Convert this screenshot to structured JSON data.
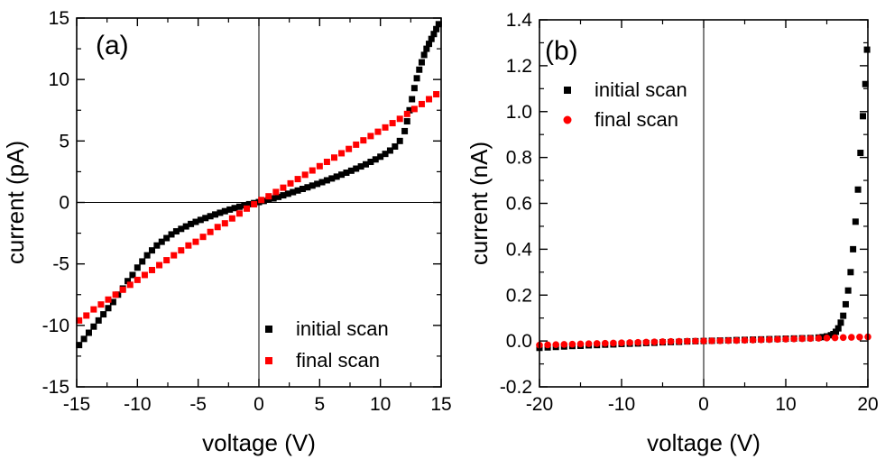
{
  "chart_data": [
    {
      "type": "scatter",
      "panel_label": "(a)",
      "xlabel": "voltage (V)",
      "ylabel": "current (pA)",
      "xlim": [
        -15,
        15
      ],
      "ylim": [
        -15,
        15
      ],
      "xticks": [
        -15,
        -10,
        -5,
        0,
        5,
        10,
        15
      ],
      "yticks": [
        -15,
        -10,
        -5,
        0,
        5,
        10,
        15
      ],
      "xtick_labels": [
        "-15",
        "-10",
        "-5",
        "0",
        "5",
        "10",
        "15"
      ],
      "ytick_labels": [
        "-15",
        "-10",
        "-5",
        "0",
        "5",
        "10",
        "15"
      ],
      "zero_lines": true,
      "grid": false,
      "legend_position": "bottom-right",
      "series": [
        {
          "name": "initial scan",
          "color": "#000000",
          "marker": "square",
          "x": [
            -14.8,
            -14.4,
            -14.0,
            -13.6,
            -13.2,
            -12.8,
            -12.4,
            -12.0,
            -11.6,
            -11.2,
            -10.8,
            -10.4,
            -10.0,
            -9.6,
            -9.2,
            -8.8,
            -8.4,
            -8.0,
            -7.6,
            -7.2,
            -6.8,
            -6.4,
            -6.0,
            -5.6,
            -5.2,
            -4.8,
            -4.4,
            -4.0,
            -3.6,
            -3.2,
            -2.8,
            -2.4,
            -2.0,
            -1.6,
            -1.2,
            -0.8,
            -0.4,
            0.0,
            0.4,
            0.8,
            1.2,
            1.6,
            2.0,
            2.4,
            2.8,
            3.2,
            3.6,
            4.0,
            4.4,
            4.8,
            5.2,
            5.6,
            6.0,
            6.4,
            6.8,
            7.2,
            7.6,
            8.0,
            8.4,
            8.8,
            9.2,
            9.6,
            10.0,
            10.4,
            10.8,
            11.2,
            11.6,
            12.0,
            12.2,
            12.4,
            12.6,
            12.8,
            13.0,
            13.2,
            13.4,
            13.6,
            13.8,
            14.0,
            14.2,
            14.4,
            14.6,
            14.8
          ],
          "y": [
            -11.6,
            -11.1,
            -10.6,
            -10.1,
            -9.6,
            -9.1,
            -8.6,
            -8.1,
            -7.5,
            -7.0,
            -6.4,
            -5.9,
            -5.3,
            -4.8,
            -4.3,
            -3.9,
            -3.5,
            -3.2,
            -2.9,
            -2.6,
            -2.35,
            -2.15,
            -1.95,
            -1.75,
            -1.58,
            -1.42,
            -1.27,
            -1.12,
            -0.98,
            -0.84,
            -0.71,
            -0.58,
            -0.46,
            -0.35,
            -0.24,
            -0.14,
            -0.05,
            0.03,
            0.12,
            0.22,
            0.33,
            0.45,
            0.58,
            0.71,
            0.84,
            0.97,
            1.1,
            1.23,
            1.37,
            1.51,
            1.65,
            1.8,
            1.95,
            2.1,
            2.26,
            2.42,
            2.58,
            2.75,
            2.93,
            3.1,
            3.3,
            3.5,
            3.72,
            3.95,
            4.22,
            4.55,
            5.0,
            5.8,
            6.6,
            7.5,
            8.4,
            9.3,
            10.1,
            10.8,
            11.4,
            12.0,
            12.5,
            12.9,
            13.3,
            13.7,
            14.1,
            14.5
          ]
        },
        {
          "name": "final scan",
          "color": "#ff0000",
          "marker": "square",
          "x": [
            -14.8,
            -14.2,
            -13.6,
            -13.0,
            -12.4,
            -11.8,
            -11.2,
            -10.6,
            -10.0,
            -9.4,
            -8.8,
            -8.2,
            -7.6,
            -7.0,
            -6.4,
            -5.8,
            -5.2,
            -4.6,
            -4.0,
            -3.4,
            -2.8,
            -2.2,
            -1.6,
            -1.0,
            -0.4,
            0.2,
            0.8,
            1.4,
            2.0,
            2.6,
            3.2,
            3.8,
            4.4,
            5.0,
            5.6,
            6.2,
            6.8,
            7.4,
            8.0,
            8.6,
            9.2,
            9.8,
            10.4,
            11.0,
            11.6,
            12.2,
            12.8,
            13.4,
            14.0,
            14.6
          ],
          "y": [
            -9.6,
            -9.2,
            -8.7,
            -8.3,
            -7.9,
            -7.5,
            -7.1,
            -6.7,
            -6.3,
            -5.9,
            -5.5,
            -5.1,
            -4.7,
            -4.3,
            -3.9,
            -3.5,
            -3.2,
            -2.8,
            -2.4,
            -2.0,
            -1.7,
            -1.3,
            -0.9,
            -0.5,
            -0.15,
            0.2,
            0.5,
            0.85,
            1.2,
            1.55,
            1.9,
            2.25,
            2.6,
            2.95,
            3.3,
            3.65,
            4.0,
            4.35,
            4.7,
            5.05,
            5.4,
            5.75,
            6.1,
            6.45,
            6.8,
            7.2,
            7.6,
            8.0,
            8.4,
            8.8
          ]
        }
      ]
    },
    {
      "type": "scatter",
      "panel_label": "(b)",
      "xlabel": "voltage (V)",
      "ylabel": "current (nA)",
      "xlim": [
        -20,
        20
      ],
      "ylim": [
        -0.2,
        1.4
      ],
      "xticks": [
        -20,
        -10,
        0,
        10,
        20
      ],
      "yticks": [
        -0.2,
        0.0,
        0.2,
        0.4,
        0.6,
        0.8,
        1.0,
        1.2,
        1.4
      ],
      "xtick_labels": [
        "-20",
        "-10",
        "0",
        "10",
        "20"
      ],
      "ytick_labels": [
        "-0.2",
        "0.0",
        "0.2",
        "0.4",
        "0.6",
        "0.8",
        "1.0",
        "1.2",
        "1.4"
      ],
      "zero_lines": "x-only",
      "grid": false,
      "legend_position": "top-left",
      "series": [
        {
          "name": "initial scan",
          "color": "#000000",
          "marker": "square",
          "x": [
            -20,
            -19,
            -18,
            -17,
            -16,
            -15,
            -14,
            -13,
            -12,
            -11,
            -10,
            -9,
            -8,
            -7,
            -6,
            -5,
            -4,
            -3,
            -2,
            -1,
            0,
            1,
            2,
            3,
            4,
            5,
            6,
            7,
            8,
            9,
            10,
            11,
            12,
            13,
            14,
            14.5,
            15,
            15.5,
            15.8,
            16.1,
            16.4,
            16.7,
            17.0,
            17.3,
            17.6,
            17.9,
            18.2,
            18.5,
            18.8,
            19.1,
            19.4,
            19.7,
            19.9
          ],
          "y": [
            -0.03,
            -0.028,
            -0.026,
            -0.024,
            -0.022,
            -0.021,
            -0.019,
            -0.018,
            -0.016,
            -0.015,
            -0.013,
            -0.012,
            -0.011,
            -0.009,
            -0.008,
            -0.006,
            -0.005,
            -0.004,
            -0.002,
            -0.001,
            0.0,
            0.001,
            0.002,
            0.003,
            0.004,
            0.005,
            0.006,
            0.007,
            0.008,
            0.009,
            0.01,
            0.011,
            0.012,
            0.013,
            0.015,
            0.017,
            0.02,
            0.025,
            0.03,
            0.04,
            0.055,
            0.08,
            0.11,
            0.16,
            0.22,
            0.3,
            0.4,
            0.52,
            0.66,
            0.82,
            0.98,
            1.12,
            1.27
          ]
        },
        {
          "name": "final scan",
          "color": "#ff0000",
          "marker": "circle",
          "x": [
            -20,
            -19,
            -18,
            -17,
            -16,
            -15,
            -14,
            -13,
            -12,
            -11,
            -10,
            -9,
            -8,
            -7,
            -6,
            -5,
            -4,
            -3,
            -2,
            -1,
            0,
            1,
            2,
            3,
            4,
            5,
            6,
            7,
            8,
            9,
            10,
            11,
            12,
            13,
            14,
            15,
            16,
            17,
            18,
            19,
            20
          ],
          "y": [
            -0.018,
            -0.017,
            -0.016,
            -0.015,
            -0.014,
            -0.013,
            -0.012,
            -0.011,
            -0.01,
            -0.009,
            -0.008,
            -0.007,
            -0.006,
            -0.005,
            -0.004,
            -0.003,
            -0.002,
            -0.0015,
            -0.001,
            -0.0005,
            0.0,
            0.0005,
            0.001,
            0.0015,
            0.002,
            0.003,
            0.004,
            0.005,
            0.006,
            0.007,
            0.008,
            0.009,
            0.01,
            0.011,
            0.012,
            0.013,
            0.014,
            0.015,
            0.016,
            0.017,
            0.018
          ]
        }
      ]
    }
  ]
}
